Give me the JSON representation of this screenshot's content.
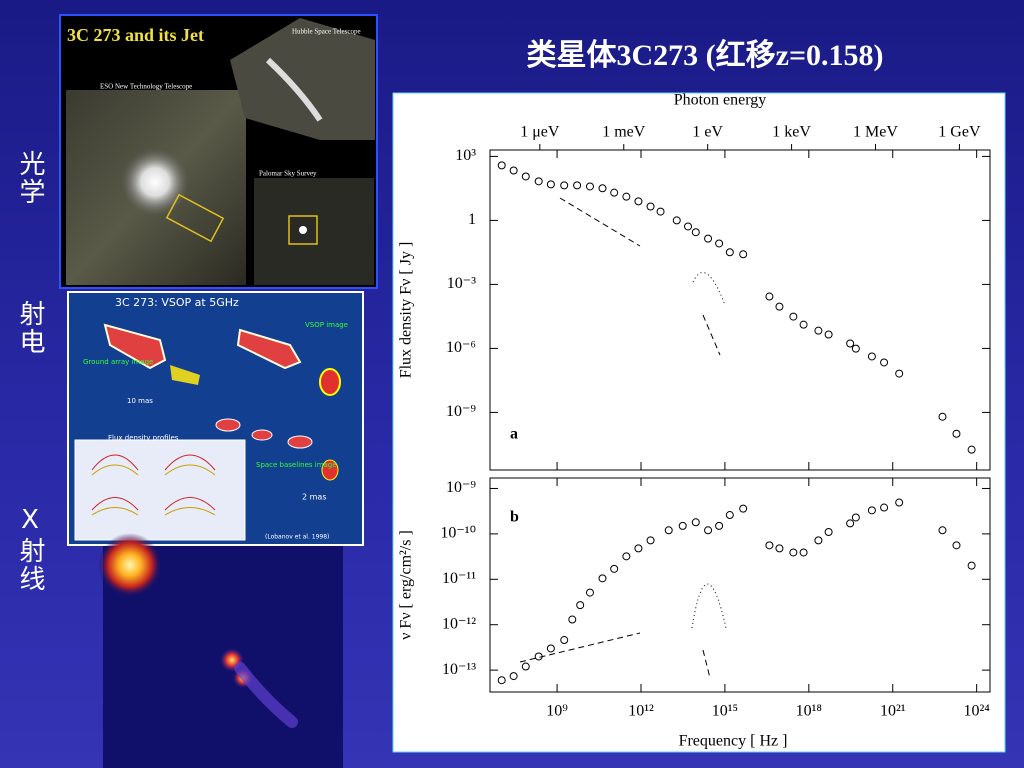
{
  "title": "类星体3C273 (红移z=0.158)",
  "side_labels": [
    "光学",
    "射电",
    "X射线"
  ],
  "optical_image": {
    "title": "3C 273 and its Jet",
    "labels": [
      "Hubble Space Telescope",
      "ESO New Technology Telescope",
      "Palomar Sky Survey"
    ]
  },
  "radio_image": {
    "title": "3C 273: VSOP at 5GHz",
    "labels": [
      "VSOP image",
      "Ground array image",
      "10 mas",
      "Flux density profiles",
      "Space baselines image",
      "2 mas",
      "(Lobanov et al. 1998)"
    ]
  },
  "chart_data": [
    {
      "type": "scatter",
      "panel_label": "a",
      "ylabel": "Flux density Fν [ Jy ]",
      "x2label": "Photon energy",
      "x2ticks": [
        {
          "value": 242000000.0,
          "label": "1 μeV"
        },
        {
          "value": 242000000000.0,
          "label": "1 meV"
        },
        {
          "value": 242000000000000.0,
          "label": "1 eV"
        },
        {
          "value": 2.42e+17,
          "label": "1 keV"
        },
        {
          "value": 2.42e+20,
          "label": "1 MeV"
        },
        {
          "value": 2.42e+23,
          "label": "1 GeV"
        }
      ],
      "xscale": "log",
      "yscale": "log",
      "xlim": [
        4000000.0,
        3e+24
      ],
      "ylim": [
        2e-12,
        2000.0
      ],
      "yticks": [
        {
          "value": 1000,
          "label": "10³"
        },
        1,
        {
          "value": 0.001,
          "label": "10⁻³"
        },
        {
          "value": 1e-06,
          "label": "10⁻⁶"
        },
        {
          "value": 1e-09,
          "label": "10⁻⁹"
        }
      ],
      "marker_color": "#000000",
      "x": [
        10500000.0,
        28000000.0,
        76000000.0,
        220000000.0,
        600000000.0,
        1800000000.0,
        5200000000.0,
        15000000000.0,
        42000000000.0,
        110000000000.0,
        300000000000.0,
        810000000000.0,
        2200000000000.0,
        5000000000000.0,
        19000000000000.0,
        48000000000000.0,
        91000000000000.0,
        250000000000000.0,
        620000000000000.0,
        1500000000000000.0,
        4500000000000000.0,
        3.9e+16,
        8.9e+16,
        2.8e+17,
        6.5e+17,
        2.2e+18,
        5.1e+18,
        3e+19,
        4.8e+19,
        1.8e+20,
        4.9e+20,
        1.7e+21,
        6e+22,
        1.9e+23,
        6.6e+23
      ],
      "values": [
        380,
        219,
        115,
        68,
        49,
        44,
        44,
        39,
        32,
        20,
        13,
        7.8,
        4.5,
        2.6,
        1.0,
        0.52,
        0.28,
        0.14,
        0.083,
        0.032,
        0.026,
        0.00027,
        9.1e-05,
        3.1e-05,
        1.3e-05,
        6.8e-06,
        4.5e-06,
        1.7e-06,
        9.8e-07,
        4.2e-07,
        2.2e-07,
        6.6e-08,
        6.3e-10,
        1e-10,
        1.8e-11
      ]
    },
    {
      "type": "scatter",
      "panel_label": "b",
      "ylabel": "ν Fν [ erg/cm²/s ]",
      "xlabel": "Frequency [ Hz ]",
      "xscale": "log",
      "yscale": "log",
      "xlim": [
        4000000.0,
        3e+24
      ],
      "ylim": [
        3.3e-14,
        1.7e-09
      ],
      "xticks": [
        {
          "value": 1000000000.0,
          "label": "10⁹"
        },
        {
          "value": 1000000000000.0,
          "label": "10¹²"
        },
        {
          "value": 1000000000000000.0,
          "label": "10¹⁵"
        },
        {
          "value": 1e+18,
          "label": "10¹⁸"
        },
        {
          "value": 1e+21,
          "label": "10²¹"
        },
        {
          "value": 1e+24,
          "label": "10²⁴"
        }
      ],
      "yticks": [
        {
          "value": 1e-09,
          "label": "10⁻⁹"
        },
        {
          "value": 1e-10,
          "label": "10⁻¹⁰"
        },
        {
          "value": 1e-11,
          "label": "10⁻¹¹"
        },
        {
          "value": 1e-12,
          "label": "10⁻¹²"
        },
        {
          "value": 1e-13,
          "label": "10⁻¹³"
        }
      ],
      "marker_color": "#000000",
      "x": [
        10500000.0,
        28000000.0,
        76000000.0,
        220000000.0,
        600000000.0,
        1800000000.0,
        3500000000.0,
        6700000000.0,
        15000000000.0,
        42000000000.0,
        110000000000.0,
        300000000000.0,
        810000000000.0,
        2200000000000.0,
        9800000000000.0,
        31000000000000.0,
        91000000000000.0,
        250000000000000.0,
        620000000000000.0,
        1500000000000000.0,
        4500000000000000.0,
        3.9e+16,
        8.9e+16,
        2.8e+17,
        6.5e+17,
        2.2e+18,
        5.1e+18,
        3e+19,
        4.8e+19,
        1.8e+20,
        4.9e+20,
        1.7e+21,
        6e+22,
        1.9e+23,
        6.6e+23
      ],
      "values": [
        6e-14,
        7.4e-14,
        1.2e-13,
        2e-13,
        3e-13,
        4.6e-13,
        1.3e-12,
        2.7e-12,
        5.1e-12,
        1.05e-11,
        1.7e-11,
        3.2e-11,
        4.8e-11,
        7.2e-11,
        1.2e-10,
        1.5e-10,
        1.8e-10,
        1.2e-10,
        1.5e-10,
        2.6e-10,
        3.6e-10,
        5.6e-11,
        4.8e-11,
        3.9e-11,
        3.9e-11,
        7.2e-11,
        1.1e-10,
        1.7e-10,
        2.3e-10,
        3.3e-10,
        3.8e-10,
        4.9e-10,
        1.2e-10,
        5.6e-11,
        2e-11
      ]
    }
  ]
}
